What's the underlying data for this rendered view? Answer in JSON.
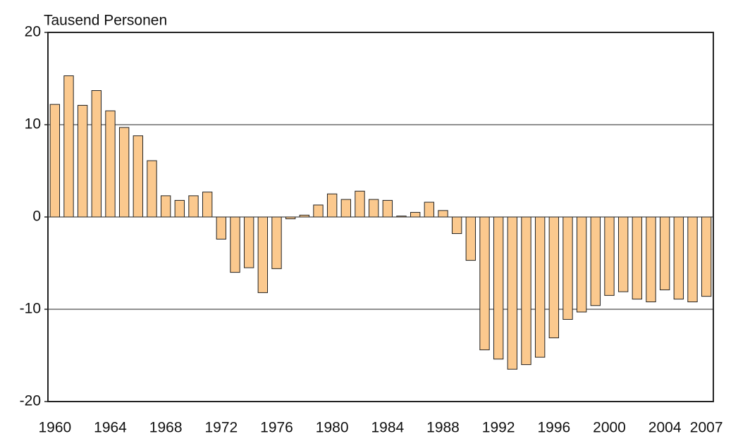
{
  "chart_data": {
    "type": "bar",
    "y_label": "Tausend Personen",
    "categories": [
      "1960",
      null,
      null,
      null,
      "1964",
      null,
      null,
      null,
      "1968",
      null,
      null,
      null,
      "1972",
      null,
      null,
      null,
      "1976",
      null,
      null,
      null,
      "1980",
      null,
      null,
      null,
      "1984",
      null,
      null,
      null,
      "1988",
      null,
      null,
      null,
      "1992",
      null,
      null,
      null,
      "1996",
      null,
      null,
      null,
      "2000",
      null,
      null,
      null,
      "2004",
      null,
      null,
      "2007"
    ],
    "values": [
      12.2,
      15.3,
      12.1,
      13.7,
      11.5,
      9.7,
      8.8,
      6.1,
      2.3,
      1.8,
      2.3,
      2.7,
      -2.4,
      -6.0,
      -5.5,
      -8.2,
      -5.6,
      -0.2,
      0.2,
      1.3,
      2.5,
      1.9,
      2.8,
      1.9,
      1.8,
      0.1,
      0.5,
      1.6,
      0.7,
      -1.8,
      -4.7,
      -14.4,
      -15.4,
      -16.5,
      -16.0,
      -15.2,
      -13.1,
      -11.1,
      -10.3,
      -9.6,
      -8.5,
      -8.1,
      -8.9,
      -9.2,
      -7.9,
      -8.9,
      -9.2,
      -8.6
    ],
    "color": "#fbc98e",
    "ylim": [
      -20,
      20
    ],
    "yticks": [
      -20,
      -10,
      0,
      10,
      20
    ],
    "grid": true
  }
}
